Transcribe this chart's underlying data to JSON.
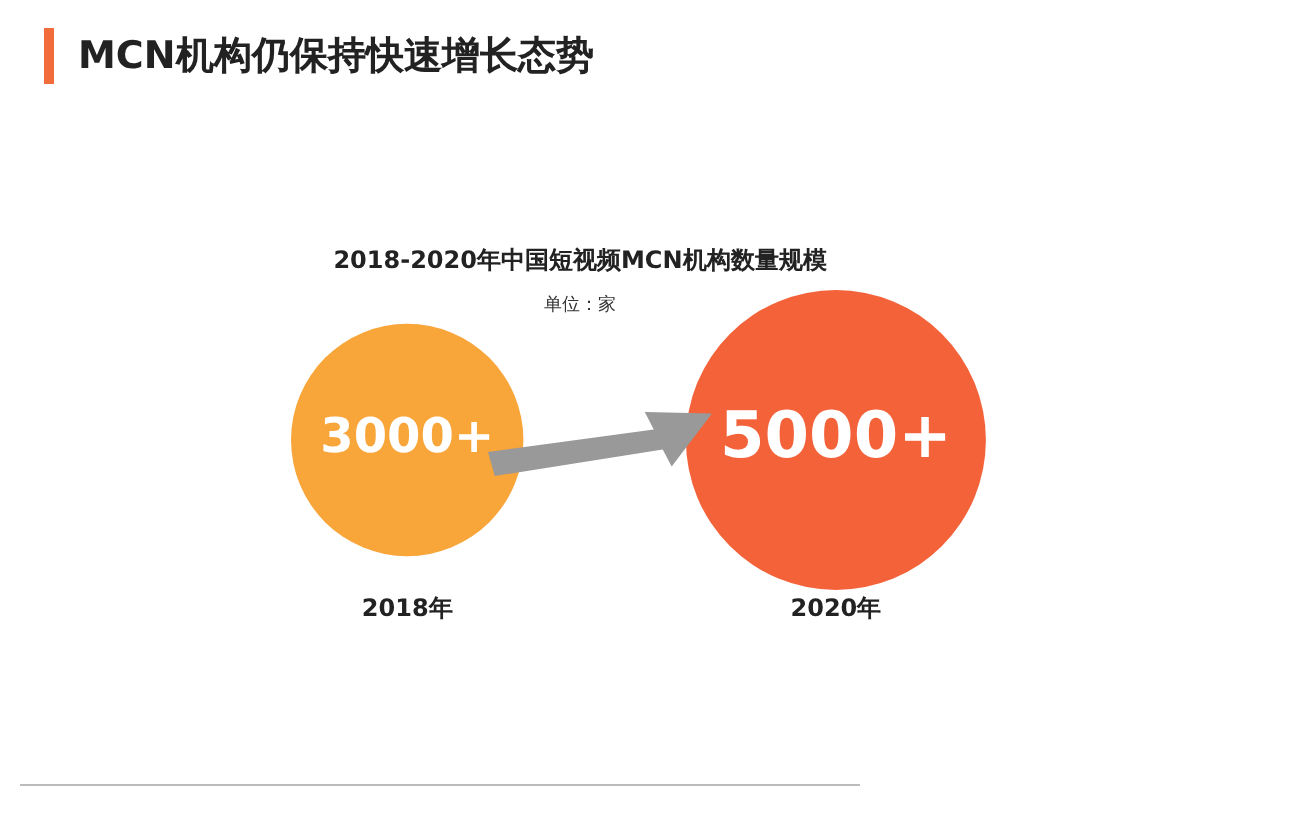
{
  "chart_data": {
    "type": "other",
    "title": "MCN机构仍保持快速增长态势",
    "subtitle": "2018-2020年中国短视频MCN机构数量规模",
    "annotations": [
      "单位：家"
    ],
    "categories": [
      "2018年",
      "2020年"
    ],
    "values": [
      3000,
      5000
    ],
    "value_labels": [
      "3000+",
      "5000+"
    ],
    "colors": [
      "#f8a53a",
      "#f4623a"
    ]
  }
}
